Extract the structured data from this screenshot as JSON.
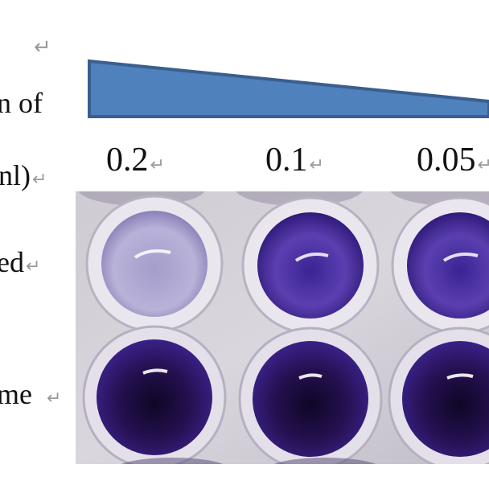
{
  "labels": {
    "line1": "n of",
    "line2": "nl)",
    "line3": "ed",
    "line4": "me"
  },
  "concentrations": [
    "0.2",
    "0.1",
    "0.05"
  ],
  "return_mark": "↵",
  "colors": {
    "wedge_fill": "#4f81bd",
    "wedge_stroke": "#3a5f8f",
    "plate": "#d7d3d8",
    "well_pale": "#b3acd2",
    "well_mid": "#4a2f99",
    "well_dark": "#1e0f4a"
  },
  "photo": {
    "content": "96-well plate wells showing purple staining intensity"
  }
}
